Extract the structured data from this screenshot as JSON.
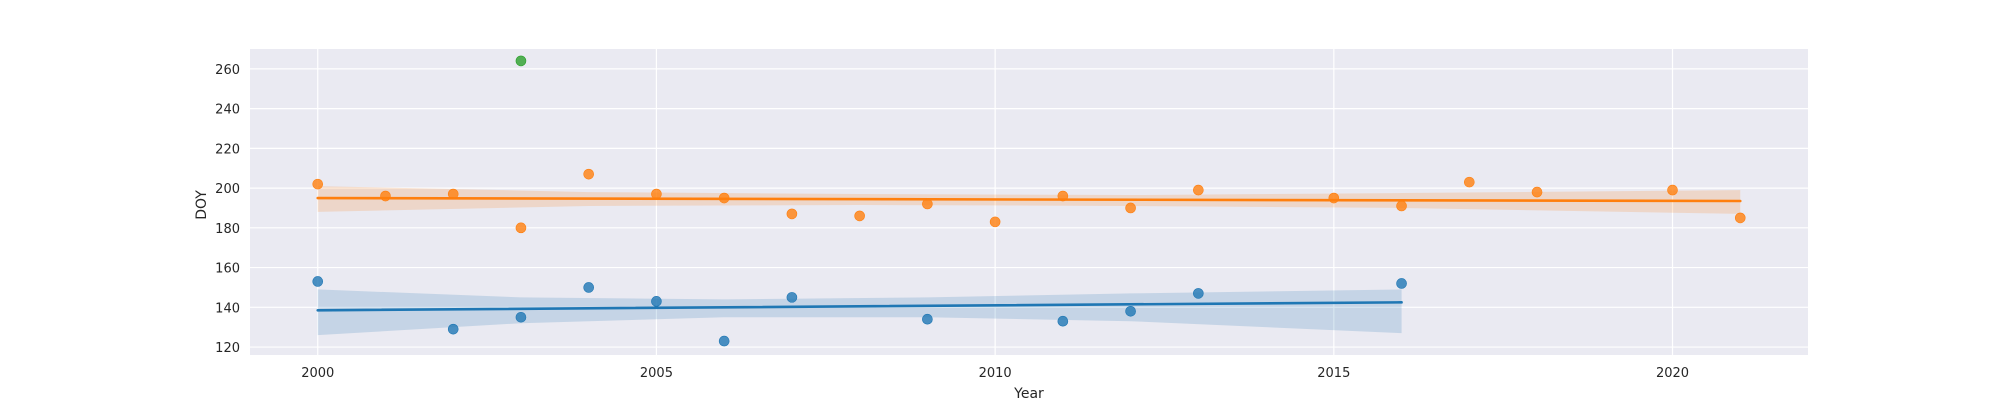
{
  "chart_data": {
    "type": "scatter",
    "xlabel": "Year",
    "ylabel": "DOY",
    "xlim": [
      1999,
      2022
    ],
    "ylim": [
      116,
      270
    ],
    "x_ticks": [
      2000,
      2005,
      2010,
      2015,
      2020
    ],
    "y_ticks": [
      120,
      140,
      160,
      180,
      200,
      220,
      240,
      260
    ],
    "grid": true,
    "colors": {
      "background": "#eaeaf2",
      "grid": "#ffffff",
      "blue": "#1f77b4",
      "orange": "#ff7f0e",
      "green": "#2ca02c"
    },
    "series": [
      {
        "color": "#1f77b4",
        "points": [
          {
            "x": 2000,
            "y": 153
          },
          {
            "x": 2002,
            "y": 129
          },
          {
            "x": 2003,
            "y": 135
          },
          {
            "x": 2004,
            "y": 150
          },
          {
            "x": 2005,
            "y": 143
          },
          {
            "x": 2006,
            "y": 123
          },
          {
            "x": 2007,
            "y": 145
          },
          {
            "x": 2009,
            "y": 134
          },
          {
            "x": 2011,
            "y": 133
          },
          {
            "x": 2012,
            "y": 138
          },
          {
            "x": 2013,
            "y": 147
          },
          {
            "x": 2016,
            "y": 152
          }
        ],
        "regression": {
          "x": [
            2000,
            2016
          ],
          "y": [
            138.5,
            142.5
          ]
        },
        "band": {
          "x": [
            2000,
            2003,
            2006,
            2009,
            2012,
            2016
          ],
          "lower": [
            126,
            132,
            135,
            135,
            133,
            127
          ],
          "upper": [
            149,
            145,
            144,
            145,
            147,
            149
          ]
        }
      },
      {
        "color": "#ff7f0e",
        "points": [
          {
            "x": 2000,
            "y": 202
          },
          {
            "x": 2001,
            "y": 196
          },
          {
            "x": 2002,
            "y": 197
          },
          {
            "x": 2003,
            "y": 180
          },
          {
            "x": 2004,
            "y": 207
          },
          {
            "x": 2005,
            "y": 197
          },
          {
            "x": 2006,
            "y": 195
          },
          {
            "x": 2007,
            "y": 187
          },
          {
            "x": 2008,
            "y": 186
          },
          {
            "x": 2009,
            "y": 192
          },
          {
            "x": 2010,
            "y": 183
          },
          {
            "x": 2011,
            "y": 196
          },
          {
            "x": 2012,
            "y": 190
          },
          {
            "x": 2013,
            "y": 199
          },
          {
            "x": 2015,
            "y": 195
          },
          {
            "x": 2016,
            "y": 191
          },
          {
            "x": 2017,
            "y": 203
          },
          {
            "x": 2018,
            "y": 198
          },
          {
            "x": 2020,
            "y": 199
          },
          {
            "x": 2021,
            "y": 185
          }
        ],
        "regression": {
          "x": [
            2000,
            2021
          ],
          "y": [
            195,
            193.5
          ]
        },
        "band": {
          "x": [
            2000,
            2004,
            2008,
            2012,
            2016,
            2021
          ],
          "lower": [
            188,
            191,
            191.5,
            191,
            190,
            187
          ],
          "upper": [
            201,
            198,
            197,
            196.5,
            197.5,
            199
          ]
        }
      },
      {
        "color": "#2ca02c",
        "points": [
          {
            "x": 2003,
            "y": 264
          }
        ]
      }
    ]
  }
}
